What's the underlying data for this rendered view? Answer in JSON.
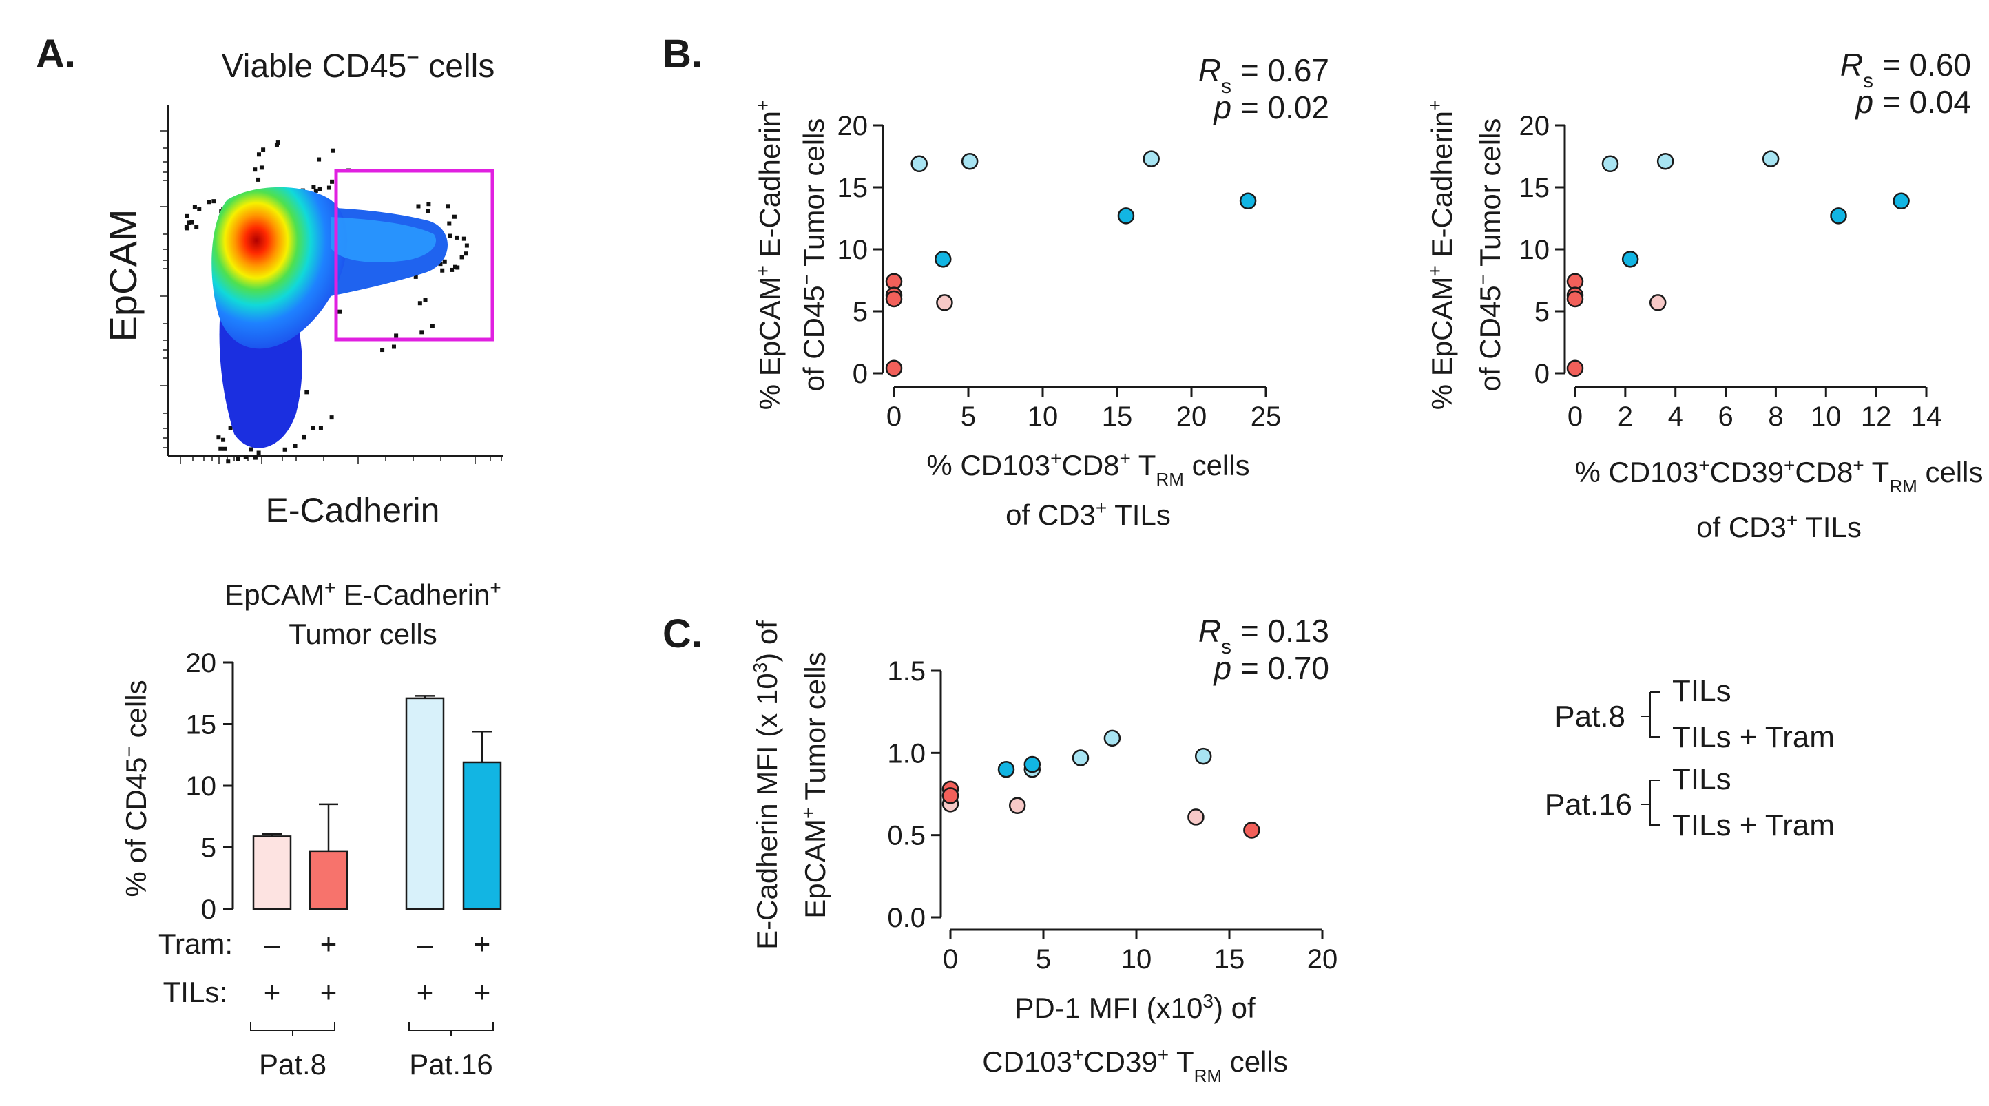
{
  "panels": {
    "a_label": "A.",
    "b_label": "B.",
    "c_label": "C."
  },
  "flow": {
    "title": "Viable CD45",
    "title_sup": "−",
    "title_suffix": " cells",
    "y_label": "EpCAM",
    "x_label": "E-Cadherin",
    "gate_color": "#e020e0"
  },
  "bar_panel": {
    "title_line1_a": "EpCAM",
    "title_line1_sup_a": "+",
    "title_line1_b": " E-Cadherin",
    "title_line1_sup_b": "+",
    "title_line2": "Tumor cells",
    "y_label_a": "% of CD45",
    "y_label_sup": "−",
    "y_label_b": " cells",
    "tram_row_label": "Tram:",
    "tils_row_label": "TILs:",
    "tram_marks": [
      "–",
      "+",
      "–",
      "+"
    ],
    "tils_marks": [
      "+",
      "+",
      "+",
      "+"
    ],
    "groups": [
      "Pat.8",
      "Pat.16"
    ]
  },
  "legend": {
    "pat8_label": "Pat.8",
    "pat16_label": "Pat.16",
    "items": [
      {
        "label": "TILs",
        "color": "#f7c9c7"
      },
      {
        "label": "TILs + Tram",
        "color": "#f2605a"
      },
      {
        "label": "TILs",
        "color": "#a8e4f2"
      },
      {
        "label": "TILs + Tram",
        "color": "#12b5e3"
      }
    ]
  },
  "chart_data": [
    {
      "id": "A-bar",
      "type": "bar",
      "categories": [
        "Pat.8 TILs",
        "Pat.8 TILs + Tram",
        "Pat.16 TILs",
        "Pat.16 TILs + Tram"
      ],
      "values": [
        5.9,
        4.7,
        17.1,
        11.9
      ],
      "errors": [
        0.2,
        3.8,
        0.2,
        2.5
      ],
      "colors": [
        "#fde3e1",
        "#f7736c",
        "#d8f1fa",
        "#12b5e3"
      ],
      "ylim": [
        0,
        20
      ],
      "yticks": [
        "0",
        "5",
        "10",
        "15",
        "20"
      ]
    },
    {
      "id": "B-left",
      "type": "scatter",
      "xlim": [
        0,
        25
      ],
      "ylim": [
        0,
        20
      ],
      "xticks": [
        "0",
        "5",
        "10",
        "15",
        "20",
        "25"
      ],
      "yticks": [
        "0",
        "5",
        "10",
        "15",
        "20"
      ],
      "xlabel_line1_a": "% CD103",
      "xlabel_line1_sup_a": "+",
      "xlabel_line1_b": "CD8",
      "xlabel_line1_sup_b": "+",
      "xlabel_line1_c": " T",
      "xlabel_line1_sub": "RM",
      "xlabel_line1_d": " cells",
      "xlabel_line2_a": "of CD3",
      "xlabel_line2_sup": "+",
      "xlabel_line2_b": " TILs",
      "ylabel_line1_a": "% EpCAM",
      "ylabel_line1_sup_a": "+",
      "ylabel_line1_b": " E-Cadherin",
      "ylabel_line1_sup_b": "+",
      "ylabel_line2_a": "of CD45",
      "ylabel_line2_sup": "−",
      "ylabel_line2_b": " Tumor cells",
      "stat_r_label": "R",
      "stat_r_sub": "s",
      "stat_r_value": " = 0.67",
      "stat_p_label": "p",
      "stat_p_value": " = 0.02",
      "series": [
        {
          "name": "Pat.8 TILs",
          "color": "#f7c9c7",
          "points": [
            [
              3.4,
              5.7
            ]
          ]
        },
        {
          "name": "Pat.8 TILs + Tram",
          "color": "#f2605a",
          "points": [
            [
              0,
              7.4
            ],
            [
              0,
              6.3
            ],
            [
              0,
              6.0
            ],
            [
              0,
              0.4
            ]
          ]
        },
        {
          "name": "Pat.16 TILs",
          "color": "#a8e4f2",
          "points": [
            [
              1.7,
              16.9
            ],
            [
              5.1,
              17.1
            ],
            [
              17.3,
              17.3
            ]
          ]
        },
        {
          "name": "Pat.16 TILs + Tram",
          "color": "#12b5e3",
          "points": [
            [
              3.3,
              9.2
            ],
            [
              15.6,
              12.7
            ],
            [
              23.8,
              13.9
            ]
          ]
        }
      ]
    },
    {
      "id": "B-right",
      "type": "scatter",
      "xlim": [
        0,
        14
      ],
      "ylim": [
        0,
        20
      ],
      "xticks": [
        "0",
        "2",
        "4",
        "6",
        "8",
        "10",
        "12",
        "14"
      ],
      "yticks": [
        "0",
        "5",
        "10",
        "15",
        "20"
      ],
      "xlabel_line1_a": "% CD103",
      "xlabel_line1_sup_a": "+",
      "xlabel_line1_b": "CD39",
      "xlabel_line1_sup_b": "+",
      "xlabel_line1_c": "CD8",
      "xlabel_line1_sup_c": "+",
      "xlabel_line1_d": " T",
      "xlabel_line1_sub": "RM",
      "xlabel_line1_e": " cells",
      "xlabel_line2_a": "of CD3",
      "xlabel_line2_sup": "+",
      "xlabel_line2_b": " TILs",
      "ylabel_line1_a": "% EpCAM",
      "ylabel_line1_sup_a": "+",
      "ylabel_line1_b": " E-Cadherin",
      "ylabel_line1_sup_b": "+",
      "ylabel_line2_a": "of CD45",
      "ylabel_line2_sup": "−",
      "ylabel_line2_b": " Tumor cells",
      "stat_r_label": "R",
      "stat_r_sub": "s",
      "stat_r_value": " = 0.60",
      "stat_p_label": "p",
      "stat_p_value": " = 0.04",
      "series": [
        {
          "name": "Pat.8 TILs",
          "color": "#f7c9c7",
          "points": [
            [
              3.3,
              5.7
            ]
          ]
        },
        {
          "name": "Pat.8 TILs + Tram",
          "color": "#f2605a",
          "points": [
            [
              0,
              7.4
            ],
            [
              0,
              6.3
            ],
            [
              0,
              6.0
            ],
            [
              0,
              0.4
            ]
          ]
        },
        {
          "name": "Pat.16 TILs",
          "color": "#a8e4f2",
          "points": [
            [
              1.4,
              16.9
            ],
            [
              3.6,
              17.1
            ],
            [
              7.8,
              17.3
            ]
          ]
        },
        {
          "name": "Pat.16 TILs + Tram",
          "color": "#12b5e3",
          "points": [
            [
              2.2,
              9.2
            ],
            [
              10.5,
              12.7
            ],
            [
              13.0,
              13.9
            ]
          ]
        }
      ]
    },
    {
      "id": "C",
      "type": "scatter",
      "xlim": [
        0,
        20
      ],
      "ylim": [
        0,
        1.5
      ],
      "xticks": [
        "0",
        "5",
        "10",
        "15",
        "20"
      ],
      "yticks": [
        "0.0",
        "0.5",
        "1.0",
        "1.5"
      ],
      "xlabel_line1_a": "PD-1 MFI (x10",
      "xlabel_line1_sup": "3",
      "xlabel_line1_b": ") of",
      "xlabel_line2_a": "CD103",
      "xlabel_line2_sup_a": "+",
      "xlabel_line2_b": "CD39",
      "xlabel_line2_sup_b": "+",
      "xlabel_line2_c": " T",
      "xlabel_line2_sub": "RM",
      "xlabel_line2_d": " cells",
      "ylabel_line1_a": "E-Cadherin MFI (x 10",
      "ylabel_line1_sup": "3",
      "ylabel_line1_b": ") of",
      "ylabel_line2_a": "EpCAM",
      "ylabel_line2_sup": "+",
      "ylabel_line2_b": " Tumor cells",
      "stat_r_label": "R",
      "stat_r_sub": "s",
      "stat_r_value": " = 0.13",
      "stat_p_label": "p",
      "stat_p_value": " = 0.70",
      "series": [
        {
          "name": "Pat.8 TILs",
          "color": "#f7c9c7",
          "points": [
            [
              0,
              0.69
            ],
            [
              3.6,
              0.68
            ],
            [
              13.2,
              0.61
            ]
          ]
        },
        {
          "name": "Pat.8 TILs + Tram",
          "color": "#f2605a",
          "points": [
            [
              0,
              0.78
            ],
            [
              0,
              0.74
            ],
            [
              16.2,
              0.53
            ]
          ]
        },
        {
          "name": "Pat.16 TILs",
          "color": "#a8e4f2",
          "points": [
            [
              4.4,
              0.9
            ],
            [
              7.0,
              0.97
            ],
            [
              8.7,
              1.09
            ],
            [
              13.6,
              0.98
            ]
          ]
        },
        {
          "name": "Pat.16 TILs + Tram",
          "color": "#12b5e3",
          "points": [
            [
              3.0,
              0.9
            ],
            [
              4.4,
              0.93
            ]
          ]
        }
      ]
    }
  ]
}
